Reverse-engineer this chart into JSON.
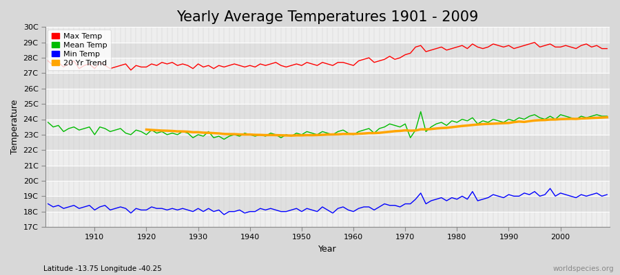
{
  "title": "Yearly Average Temperatures 1901 - 2009",
  "xlabel": "Year",
  "ylabel": "Temperature",
  "subtitle": "Latitude -13.75 Longitude -40.25",
  "watermark": "worldspecies.org",
  "years": [
    1901,
    1902,
    1903,
    1904,
    1905,
    1906,
    1907,
    1908,
    1909,
    1910,
    1911,
    1912,
    1913,
    1914,
    1915,
    1916,
    1917,
    1918,
    1919,
    1920,
    1921,
    1922,
    1923,
    1924,
    1925,
    1926,
    1927,
    1928,
    1929,
    1930,
    1931,
    1932,
    1933,
    1934,
    1935,
    1936,
    1937,
    1938,
    1939,
    1940,
    1941,
    1942,
    1943,
    1944,
    1945,
    1946,
    1947,
    1948,
    1949,
    1950,
    1951,
    1952,
    1953,
    1954,
    1955,
    1956,
    1957,
    1958,
    1959,
    1960,
    1961,
    1962,
    1963,
    1964,
    1965,
    1966,
    1967,
    1968,
    1969,
    1970,
    1971,
    1972,
    1973,
    1974,
    1975,
    1976,
    1977,
    1978,
    1979,
    1980,
    1981,
    1982,
    1983,
    1984,
    1985,
    1986,
    1987,
    1988,
    1989,
    1990,
    1991,
    1992,
    1993,
    1994,
    1995,
    1996,
    1997,
    1998,
    1999,
    2000,
    2001,
    2002,
    2003,
    2004,
    2005,
    2006,
    2007,
    2008,
    2009
  ],
  "max_temp": [
    27.8,
    27.5,
    27.7,
    27.4,
    27.6,
    27.8,
    27.3,
    27.5,
    27.6,
    27.3,
    27.7,
    27.5,
    27.3,
    27.4,
    27.5,
    27.6,
    27.2,
    27.5,
    27.4,
    27.4,
    27.6,
    27.5,
    27.7,
    27.6,
    27.7,
    27.5,
    27.6,
    27.5,
    27.3,
    27.6,
    27.4,
    27.5,
    27.3,
    27.5,
    27.4,
    27.5,
    27.6,
    27.5,
    27.4,
    27.5,
    27.4,
    27.6,
    27.5,
    27.6,
    27.7,
    27.5,
    27.4,
    27.5,
    27.6,
    27.5,
    27.7,
    27.6,
    27.5,
    27.7,
    27.6,
    27.5,
    27.7,
    27.7,
    27.6,
    27.5,
    27.8,
    27.9,
    28.0,
    27.7,
    27.8,
    27.9,
    28.1,
    27.9,
    28.0,
    28.2,
    28.3,
    28.7,
    28.8,
    28.4,
    28.5,
    28.6,
    28.7,
    28.5,
    28.6,
    28.7,
    28.8,
    28.6,
    28.9,
    28.7,
    28.6,
    28.7,
    28.9,
    28.8,
    28.7,
    28.8,
    28.6,
    28.7,
    28.8,
    28.9,
    29.0,
    28.7,
    28.8,
    28.9,
    28.7,
    28.7,
    28.8,
    28.7,
    28.6,
    28.8,
    28.9,
    28.7,
    28.8,
    28.6,
    28.6
  ],
  "mean_temp": [
    23.8,
    23.5,
    23.6,
    23.2,
    23.4,
    23.5,
    23.3,
    23.4,
    23.5,
    23.0,
    23.5,
    23.4,
    23.2,
    23.3,
    23.4,
    23.1,
    23.0,
    23.3,
    23.2,
    23.0,
    23.3,
    23.1,
    23.2,
    23.0,
    23.1,
    23.0,
    23.2,
    23.1,
    22.8,
    23.0,
    22.9,
    23.2,
    22.8,
    22.9,
    22.7,
    22.9,
    23.0,
    22.9,
    23.1,
    23.0,
    22.9,
    23.0,
    22.9,
    23.1,
    23.0,
    22.8,
    23.0,
    22.9,
    23.1,
    23.0,
    23.2,
    23.1,
    23.0,
    23.2,
    23.1,
    23.0,
    23.2,
    23.3,
    23.1,
    23.0,
    23.2,
    23.3,
    23.4,
    23.1,
    23.4,
    23.5,
    23.7,
    23.6,
    23.5,
    23.7,
    22.8,
    23.3,
    24.5,
    23.2,
    23.5,
    23.7,
    23.8,
    23.6,
    23.9,
    23.8,
    24.0,
    23.9,
    24.1,
    23.7,
    23.9,
    23.8,
    24.0,
    23.9,
    23.8,
    24.0,
    23.9,
    24.1,
    24.0,
    24.2,
    24.3,
    24.1,
    24.0,
    24.2,
    24.0,
    24.3,
    24.2,
    24.1,
    24.0,
    24.2,
    24.1,
    24.2,
    24.3,
    24.2,
    24.2
  ],
  "min_temp": [
    18.5,
    18.3,
    18.4,
    18.2,
    18.3,
    18.4,
    18.2,
    18.3,
    18.4,
    18.1,
    18.3,
    18.4,
    18.1,
    18.2,
    18.3,
    18.2,
    17.9,
    18.2,
    18.1,
    18.1,
    18.3,
    18.2,
    18.2,
    18.1,
    18.2,
    18.1,
    18.2,
    18.1,
    18.0,
    18.2,
    18.0,
    18.2,
    18.0,
    18.1,
    17.8,
    18.0,
    18.0,
    18.1,
    17.9,
    18.0,
    18.0,
    18.2,
    18.1,
    18.2,
    18.1,
    18.0,
    18.0,
    18.1,
    18.2,
    18.0,
    18.2,
    18.1,
    18.0,
    18.3,
    18.1,
    17.9,
    18.2,
    18.3,
    18.1,
    18.0,
    18.2,
    18.3,
    18.3,
    18.1,
    18.3,
    18.5,
    18.4,
    18.4,
    18.3,
    18.5,
    18.5,
    18.8,
    19.2,
    18.5,
    18.7,
    18.8,
    18.9,
    18.7,
    18.9,
    18.8,
    19.0,
    18.8,
    19.3,
    18.7,
    18.8,
    18.9,
    19.1,
    19.0,
    18.9,
    19.1,
    19.0,
    19.0,
    19.2,
    19.1,
    19.3,
    19.0,
    19.1,
    19.5,
    19.0,
    19.2,
    19.1,
    19.0,
    18.9,
    19.1,
    19.0,
    19.1,
    19.2,
    19.0,
    19.1
  ],
  "ylim_min": 17,
  "ylim_max": 30,
  "yticks": [
    17,
    18,
    19,
    20,
    21,
    22,
    23,
    24,
    25,
    26,
    27,
    28,
    29,
    30
  ],
  "ytick_labels": [
    "17C",
    "18C",
    "19C",
    "20C",
    "21C",
    "22C",
    "23C",
    "24C",
    "25C",
    "26C",
    "27C",
    "28C",
    "29C",
    "30C"
  ],
  "xticks": [
    1910,
    1920,
    1930,
    1940,
    1950,
    1960,
    1970,
    1980,
    1990,
    2000
  ],
  "bg_color": "#d8d8d8",
  "plot_bg_color": "#e8e8e8",
  "grid_color_h": "#ffffff",
  "grid_color_v": "#cccccc",
  "max_color": "#ff0000",
  "mean_color": "#00bb00",
  "min_color": "#0000ff",
  "trend_color": "#ffa500",
  "trend_linewidth": 2.5,
  "line_linewidth": 1.0,
  "legend_items": [
    "Max Temp",
    "Mean Temp",
    "Min Temp",
    "20 Yr Trend"
  ],
  "legend_colors": [
    "#ff0000",
    "#00bb00",
    "#0000ff",
    "#ffa500"
  ],
  "title_fontsize": 15,
  "axis_fontsize": 9,
  "tick_fontsize": 8
}
